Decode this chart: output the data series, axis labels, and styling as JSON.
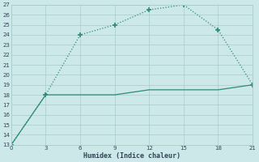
{
  "xlabel": "Humidex (Indice chaleur)",
  "x_ticks": [
    0,
    3,
    6,
    9,
    12,
    15,
    18,
    21
  ],
  "ylim_min": 13,
  "ylim_max": 27,
  "xlim_min": 0,
  "xlim_max": 21,
  "y_ticks": [
    13,
    14,
    15,
    16,
    17,
    18,
    19,
    20,
    21,
    22,
    23,
    24,
    25,
    26,
    27
  ],
  "line1_x": [
    0,
    3,
    6,
    9,
    12,
    15,
    18,
    21
  ],
  "line1_y": [
    13,
    18,
    24,
    25,
    26.5,
    27,
    24.5,
    19
  ],
  "line2_x": [
    0,
    3,
    6,
    9,
    12,
    15,
    18,
    21
  ],
  "line2_y": [
    13,
    18,
    18,
    18,
    18.5,
    18.5,
    18.5,
    19
  ],
  "line_color": "#2e8b74",
  "bg_color": "#cce8e8",
  "grid_color": "#aacccc",
  "tick_label_color": "#334455",
  "xlabel_color": "#334455",
  "marker": "+",
  "marker_size": 5,
  "linewidth": 0.9
}
